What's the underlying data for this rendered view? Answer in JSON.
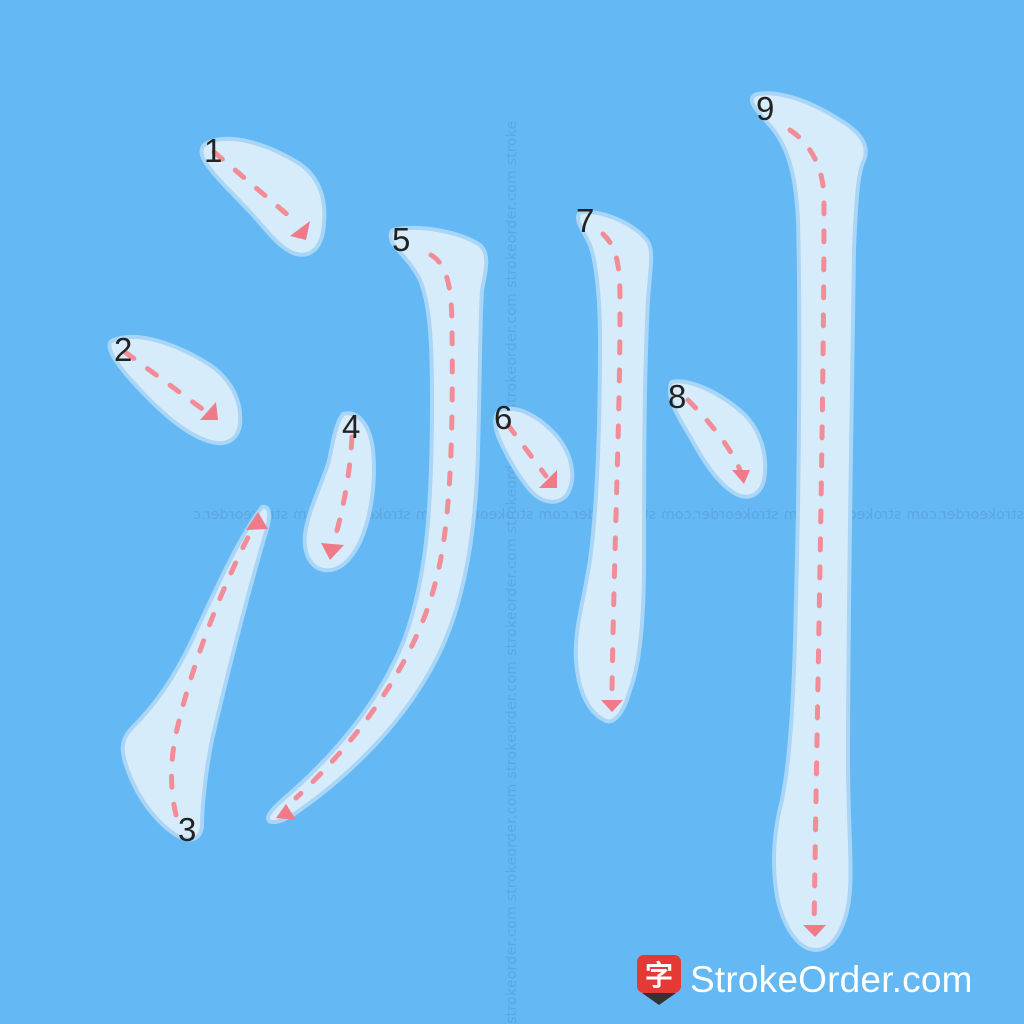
{
  "watermark": {
    "horizontal": "strokeorder.com strokeorder.com strokeorder.com strokeorder.com strokeorder.com strokeorder.com strokeorder.c",
    "vertical": "strokeorder.com strokeorder.com strokeorder.com strokeorder.com strokeorder.com strokeorder.com strokeorder.com stroke"
  },
  "strokes": [
    {
      "number": "1"
    },
    {
      "number": "2"
    },
    {
      "number": "3"
    },
    {
      "number": "4"
    },
    {
      "number": "5"
    },
    {
      "number": "6"
    },
    {
      "number": "7"
    },
    {
      "number": "8"
    },
    {
      "number": "9"
    }
  ],
  "brand": {
    "icon_char": "字",
    "name": "StrokeOrder.com"
  },
  "colors": {
    "background": "#64b8f4",
    "stroke_fill": "#d7ecfb",
    "stroke_outline": "#a9d6f7",
    "direction_arrow": "#f28c97",
    "logo_red": "#e53935",
    "logo_dark": "#333333"
  }
}
